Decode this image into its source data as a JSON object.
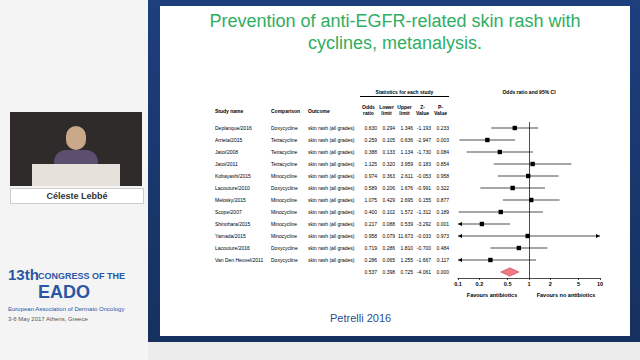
{
  "slide": {
    "title": "Prevention of anti-EGFR-related skin rash with cyclines, metanalysis.",
    "citation": "Petrelli 2016"
  },
  "speaker": "Céleste Lebbé",
  "event": {
    "edition": "13th",
    "line": "CONGRESS OF THE",
    "name": "EADO",
    "subtitle": "European Association of Dermato Oncology",
    "dates": "3-6 May 2017 Athens, Greece"
  },
  "table": {
    "columns": [
      "Study name",
      "Comparison",
      "Outcome"
    ],
    "stats_header": "Statistics for each study",
    "stats_columns": [
      "Odds ratio",
      "Lower limit",
      "Upper limit",
      "Z-Value",
      "P-Value"
    ],
    "plot_header": "Odds ratio and 95% CI",
    "rows": [
      [
        "Doxycycline",
        "skin rash (all grades)",
        "0.630",
        "0.294",
        "1.346",
        "-1.193",
        "0.233"
      ],
      [
        "Tetracycline",
        "skin rash (all grades)",
        "0.259",
        "0.105",
        "0.636",
        "-2.947",
        "0.003"
      ],
      [
        "Tetracycline",
        "skin rash (all grades)",
        "0.388",
        "0.133",
        "1.134",
        "-1.730",
        "0.084"
      ],
      [
        "Tetracycline",
        "skin rash (all grades)",
        "1.125",
        "0.320",
        "3.959",
        "0.183",
        "0.854"
      ],
      [
        "Minocycline",
        "skin rash (all grades)",
        "0.974",
        "0.363",
        "2.611",
        "-0.053",
        "0.958"
      ],
      [
        "Doxycycline",
        "skin rash (all grades)",
        "0.589",
        "0.206",
        "1.676",
        "-0.991",
        "0.322"
      ],
      [
        "Minocycline",
        "skin rash (all grades)",
        "1.075",
        "0.429",
        "2.695",
        "0.155",
        "0.877"
      ],
      [
        "Minocycline",
        "skin rash (all grades)",
        "0.400",
        "0.102",
        "1.572",
        "-1.312",
        "0.189"
      ],
      [
        "Minocycline",
        "skin rash (all grades)",
        "0.217",
        "0.088",
        "0.539",
        "-3.292",
        "0.001"
      ],
      [
        "Minocycline",
        "skin rash (all grades)",
        "0.958",
        "0.079",
        "11.673",
        "-0.033",
        "0.973"
      ],
      [
        "Doxycycline",
        "skin rash (all grades)",
        "0.719",
        "0.286",
        "1.810",
        "-0.700",
        "0.484"
      ],
      [
        "Doxycycline",
        "skin rash (all grades)",
        "0.286",
        "0.065",
        "1.255",
        "-1.667",
        "0.117"
      ],
      [
        null,
        null,
        "0.537",
        "0.398",
        "0.725",
        "-4.061",
        "0.000"
      ]
    ]
  },
  "chart_data": {
    "type": "forest",
    "categories": [
      "Deplanque/2016",
      "Arrieta/2015",
      "Jatoi/2008",
      "Jatoi/2011",
      "Kobayashi/2015",
      "Lacouture/2010",
      "Melosky/2015",
      "Scope/2007",
      "Shinohara/2015",
      "Yamada/2015",
      "Lacouture/2016",
      "Van Den Heuvel/2011",
      null
    ],
    "series": [
      {
        "marker": "square",
        "color": "#000000",
        "values": [
          0.63,
          0.259,
          0.388,
          1.125,
          0.974,
          0.589,
          1.075,
          0.4,
          0.217,
          0.958,
          0.719,
          0.286,
          null
        ],
        "lower": [
          0.294,
          0.105,
          0.133,
          0.32,
          0.363,
          0.206,
          0.429,
          0.102,
          0.088,
          0.079,
          0.286,
          0.065,
          null
        ],
        "upper": [
          1.346,
          0.636,
          1.134,
          3.959,
          2.611,
          1.676,
          2.695,
          1.572,
          0.539,
          11.673,
          1.81,
          1.255,
          null
        ]
      },
      {
        "marker": "diamond",
        "color": "#ee7b82",
        "values": [
          null,
          null,
          null,
          null,
          null,
          null,
          null,
          null,
          null,
          null,
          null,
          null,
          0.537
        ],
        "lower": [
          null,
          null,
          null,
          null,
          null,
          null,
          null,
          null,
          null,
          null,
          null,
          null,
          0.398
        ],
        "upper": [
          null,
          null,
          null,
          null,
          null,
          null,
          null,
          null,
          null,
          null,
          null,
          null,
          0.725
        ]
      }
    ],
    "reference_line": 1,
    "log": "x",
    "xlim": [
      0.1,
      10
    ],
    "xticks": [
      0.1,
      0.2,
      0.5,
      1,
      2,
      5,
      10
    ],
    "tick_labels": "x",
    "grid": false,
    "annotations": [
      "Favours antibiotics",
      "Favours no antibiotics"
    ]
  }
}
